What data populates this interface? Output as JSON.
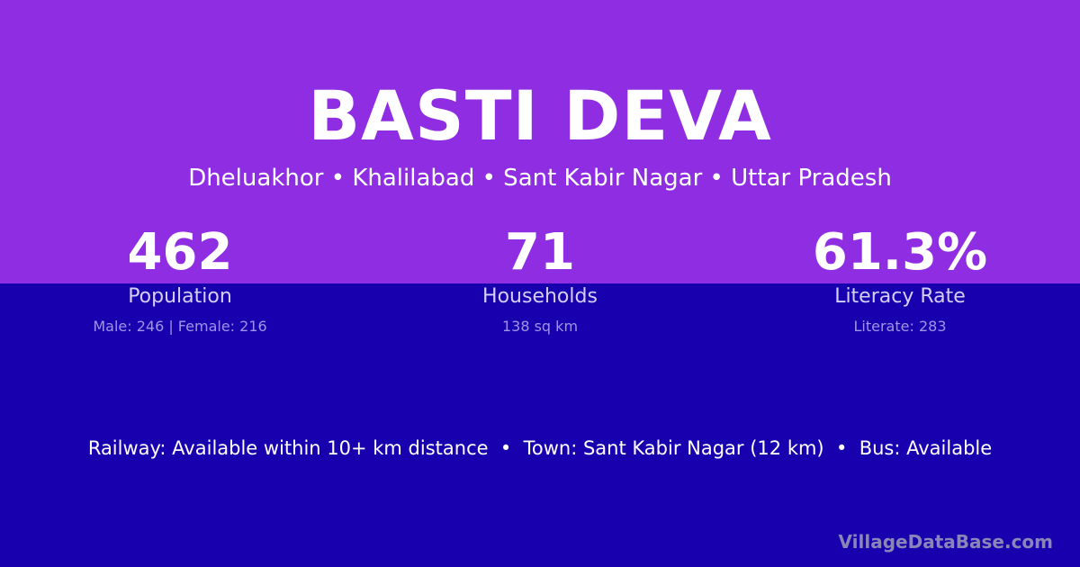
{
  "title": "BASTI DEVA",
  "subtitle": "Dheluakhor • Khalilabad • Sant Kabir Nagar • Uttar Pradesh",
  "stats": [
    {
      "value": "462",
      "label": "Population",
      "detail": "Male: 246 | Female: 216"
    },
    {
      "value": "71",
      "label": "Households",
      "detail": "138 sq km"
    },
    {
      "value": "61.3%",
      "label": "Literacy Rate",
      "detail": "Literate: 283"
    }
  ],
  "info": "Railway: Available within 10+ km distance  •  Town: Sant Kabir Nagar (12 km)  •  Bus: Available",
  "brand": "VillageDataBase.com",
  "colors": {
    "top": "#8e2de2",
    "bottom": "#1900ae"
  }
}
